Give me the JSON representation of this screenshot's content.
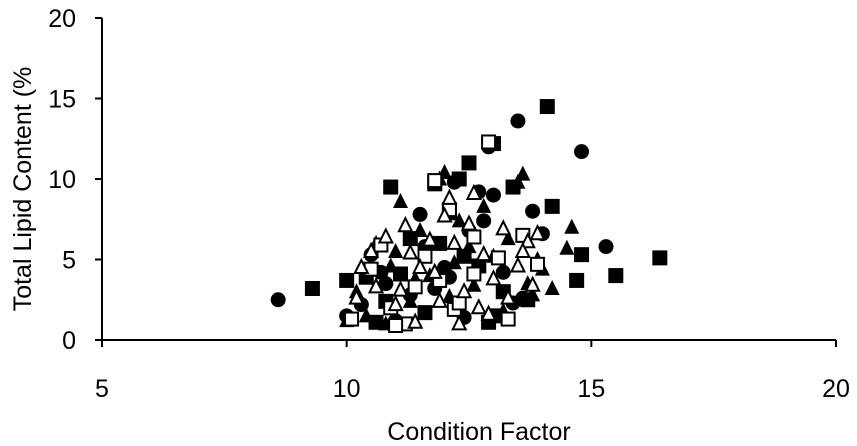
{
  "chart_data": {
    "type": "scatter",
    "xlabel": "Condition Factor",
    "ylabel": "Total Lipid Content (%",
    "xlim": [
      5,
      20
    ],
    "ylim": [
      0,
      20
    ],
    "xticks": [
      "5",
      "10",
      "15",
      "20"
    ],
    "yticks": [
      "0",
      "5",
      "10",
      "15",
      "20"
    ],
    "grid": false,
    "legend": "none",
    "colors": {
      "marker": "#000000",
      "axis": "#000000",
      "background": "#ffffff"
    },
    "series": [
      {
        "marker": "circle",
        "points": [
          [
            8.6,
            2.5
          ],
          [
            10.0,
            1.5
          ],
          [
            10.3,
            2.2
          ],
          [
            10.5,
            5.3
          ],
          [
            10.8,
            3.5
          ],
          [
            11.0,
            1.2
          ],
          [
            11.3,
            2.8
          ],
          [
            11.5,
            7.8
          ],
          [
            11.8,
            3.2
          ],
          [
            12.0,
            4.5
          ],
          [
            12.2,
            9.8
          ],
          [
            12.4,
            1.4
          ],
          [
            12.5,
            6.8
          ],
          [
            12.7,
            9.2
          ],
          [
            12.9,
            12.0
          ],
          [
            13.0,
            9.0
          ],
          [
            13.2,
            4.2
          ],
          [
            13.4,
            2.3
          ],
          [
            13.5,
            13.6
          ],
          [
            13.6,
            2.6
          ],
          [
            13.8,
            8.0
          ],
          [
            14.0,
            6.6
          ],
          [
            14.8,
            11.7
          ],
          [
            15.3,
            5.8
          ],
          [
            11.6,
            5.8
          ],
          [
            12.1,
            3.9
          ],
          [
            10.7,
            4.2
          ],
          [
            12.8,
            7.4
          ]
        ]
      },
      {
        "marker": "square",
        "points": [
          [
            9.3,
            3.2
          ],
          [
            10.0,
            3.7
          ],
          [
            10.4,
            3.9
          ],
          [
            10.6,
            1.1
          ],
          [
            10.9,
            9.5
          ],
          [
            11.1,
            4.1
          ],
          [
            11.3,
            6.3
          ],
          [
            11.6,
            1.7
          ],
          [
            11.8,
            9.7
          ],
          [
            12.1,
            7.9
          ],
          [
            12.3,
            10.0
          ],
          [
            12.5,
            11.0
          ],
          [
            12.7,
            4.6
          ],
          [
            12.9,
            1.1
          ],
          [
            13.0,
            12.2
          ],
          [
            13.2,
            3.0
          ],
          [
            13.4,
            9.5
          ],
          [
            13.7,
            2.5
          ],
          [
            14.1,
            14.5
          ],
          [
            14.2,
            8.3
          ],
          [
            14.7,
            3.7
          ],
          [
            14.8,
            5.3
          ],
          [
            15.5,
            4.0
          ],
          [
            16.4,
            5.1
          ],
          [
            13.1,
            1.5
          ],
          [
            11.9,
            6.0
          ],
          [
            10.8,
            2.4
          ],
          [
            12.4,
            5.2
          ]
        ]
      },
      {
        "marker": "triangle",
        "points": [
          [
            10.0,
            1.2
          ],
          [
            10.2,
            3.0
          ],
          [
            10.4,
            1.5
          ],
          [
            10.6,
            6.0
          ],
          [
            10.8,
            1.0
          ],
          [
            11.0,
            5.5
          ],
          [
            11.1,
            8.6
          ],
          [
            11.3,
            2.4
          ],
          [
            11.5,
            6.8
          ],
          [
            11.7,
            4.0
          ],
          [
            11.9,
            10.0
          ],
          [
            12.0,
            10.4
          ],
          [
            12.1,
            2.7
          ],
          [
            12.3,
            7.4
          ],
          [
            12.5,
            5.8
          ],
          [
            12.6,
            3.4
          ],
          [
            12.8,
            8.3
          ],
          [
            13.0,
            5.2
          ],
          [
            13.2,
            1.8
          ],
          [
            13.3,
            6.3
          ],
          [
            13.5,
            9.8
          ],
          [
            13.6,
            10.3
          ],
          [
            13.7,
            3.5
          ],
          [
            13.9,
            5.0
          ],
          [
            14.0,
            4.4
          ],
          [
            14.2,
            3.2
          ],
          [
            14.5,
            5.7
          ],
          [
            14.6,
            7.0
          ],
          [
            13.8,
            2.8
          ],
          [
            12.2,
            4.8
          ],
          [
            11.4,
            3.8
          ],
          [
            10.9,
            4.6
          ]
        ]
      },
      {
        "marker": "open-square",
        "points": [
          [
            10.1,
            1.3
          ],
          [
            10.5,
            4.4
          ],
          [
            10.9,
            2.0
          ],
          [
            11.2,
            1.0
          ],
          [
            11.6,
            5.2
          ],
          [
            11.9,
            3.7
          ],
          [
            12.2,
            1.9
          ],
          [
            12.6,
            6.4
          ],
          [
            12.9,
            12.3
          ],
          [
            13.3,
            1.3
          ],
          [
            13.6,
            6.5
          ],
          [
            13.9,
            4.7
          ],
          [
            11.8,
            9.9
          ],
          [
            12.3,
            2.3
          ],
          [
            12.6,
            4.1
          ],
          [
            10.7,
            5.9
          ],
          [
            12.1,
            8.1
          ],
          [
            11.4,
            3.3
          ],
          [
            13.1,
            5.1
          ],
          [
            11.0,
            0.9
          ]
        ]
      },
      {
        "marker": "open-triangle",
        "points": [
          [
            10.2,
            2.6
          ],
          [
            10.3,
            4.5
          ],
          [
            10.6,
            3.3
          ],
          [
            10.8,
            6.4
          ],
          [
            11.0,
            2.2
          ],
          [
            11.2,
            7.1
          ],
          [
            11.4,
            1.1
          ],
          [
            11.5,
            4.5
          ],
          [
            11.7,
            6.2
          ],
          [
            11.9,
            2.4
          ],
          [
            12.0,
            7.7
          ],
          [
            12.2,
            6.0
          ],
          [
            12.4,
            3.0
          ],
          [
            12.5,
            7.2
          ],
          [
            12.7,
            2.0
          ],
          [
            12.8,
            5.3
          ],
          [
            13.0,
            3.8
          ],
          [
            13.2,
            6.9
          ],
          [
            13.3,
            2.6
          ],
          [
            13.5,
            4.6
          ],
          [
            13.7,
            6.1
          ],
          [
            13.8,
            3.4
          ],
          [
            13.9,
            6.6
          ],
          [
            12.1,
            8.8
          ],
          [
            11.3,
            5.4
          ],
          [
            12.6,
            9.1
          ],
          [
            10.5,
            5.5
          ],
          [
            11.1,
            3.1
          ],
          [
            12.9,
            1.6
          ],
          [
            13.6,
            5.5
          ],
          [
            11.8,
            4.2
          ],
          [
            12.3,
            1.0
          ]
        ]
      }
    ]
  }
}
